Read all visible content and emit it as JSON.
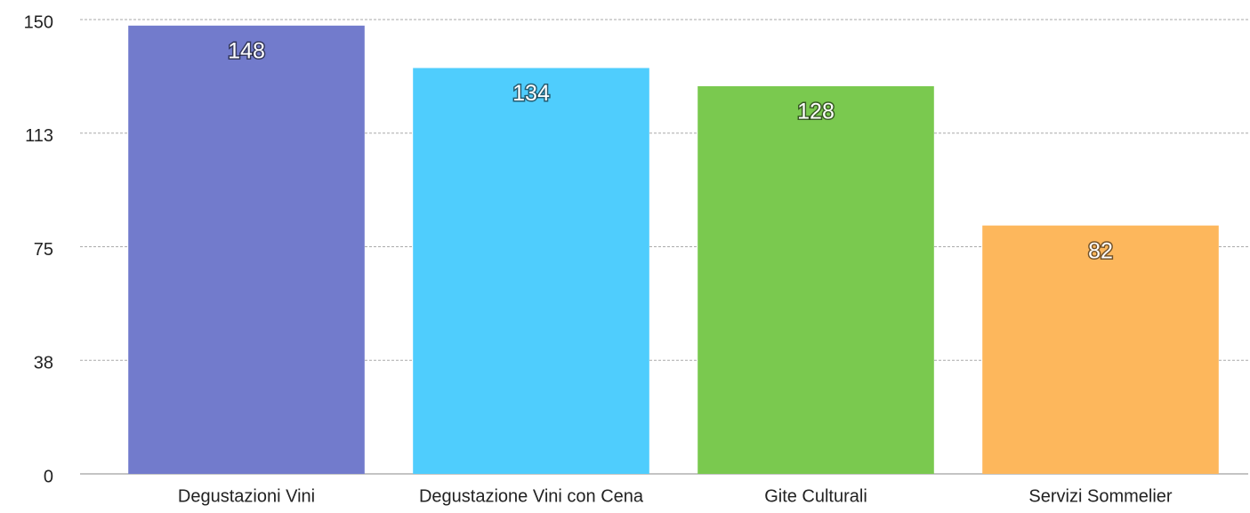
{
  "chart_data": {
    "type": "bar",
    "categories": [
      "Degustazioni Vini",
      "Degustazione Vini con Cena",
      "Gite Culturali",
      "Servizi Sommelier"
    ],
    "values": [
      148,
      134,
      128,
      82
    ],
    "colors": [
      "#727bcc",
      "#4fcdfd",
      "#7ac94f",
      "#fdb75c"
    ],
    "ylim": [
      0,
      150
    ],
    "yticks": [
      0,
      {
        "value": 37.5,
        "label": "38"
      },
      75,
      {
        "value": 112.5,
        "label": "113"
      },
      150
    ],
    "grid": true
  }
}
